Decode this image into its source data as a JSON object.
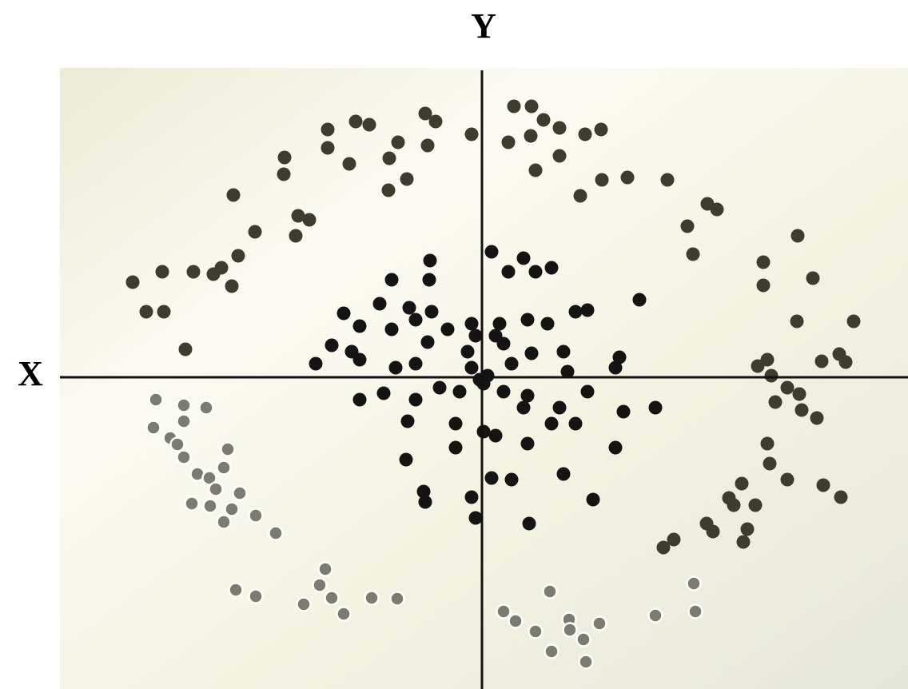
{
  "chart_data": {
    "type": "scatter",
    "xlabel": "X",
    "ylabel": "Y",
    "xlim": [
      -528,
      533
    ],
    "ylim": [
      -390,
      387
    ],
    "series": [
      {
        "color": "#141414",
        "x": [
          -65,
          12,
          52,
          87,
          33,
          67,
          -113,
          -66,
          197,
          -173,
          -128,
          -91,
          -63,
          117,
          132,
          -153,
          -113,
          -83,
          -43,
          -13,
          22,
          57,
          82,
          -188,
          -163,
          -68,
          -18,
          27,
          62,
          102,
          172,
          -208,
          -153,
          -108,
          -83,
          -13,
          37,
          107,
          167,
          -53,
          -28,
          2,
          27,
          57,
          132,
          -153,
          -123,
          -83,
          217,
          177,
          97,
          52,
          -93,
          -33,
          2,
          87,
          117,
          -33,
          17,
          57,
          167,
          -95,
          12,
          37,
          102,
          -73,
          -13,
          139,
          -71,
          -8,
          59,
          -3,
          7,
          -8,
          17
        ],
        "values": [
          146,
          157,
          149,
          137,
          132,
          132,
          122,
          122,
          97,
          80,
          92,
          87,
          82,
          82,
          84,
          64,
          60,
          72,
          60,
          67,
          67,
          72,
          67,
          40,
          32,
          44,
          32,
          42,
          30,
          32,
          25,
          17,
          22,
          12,
          17,
          12,
          17,
          7,
          12,
          -13,
          -18,
          -8,
          -18,
          -23,
          -18,
          -28,
          -20,
          -28,
          -38,
          -43,
          -38,
          -38,
          -55,
          -58,
          -68,
          -58,
          -58,
          -88,
          -73,
          -83,
          -88,
          -103,
          -126,
          -128,
          -121,
          -143,
          -150,
          -153,
          -156,
          -176,
          -183,
          -3,
          2,
          52,
          52
        ]
      },
      {
        "color": "#3d3c2e",
        "x": [
          -71,
          -58,
          -158,
          -141,
          -193,
          -13,
          40,
          62,
          77,
          97,
          129,
          149,
          61,
          33,
          -193,
          -166,
          -105,
          -116,
          -68,
          -247,
          -248,
          -94,
          -117,
          67,
          97,
          -311,
          123,
          150,
          182,
          232,
          282,
          294,
          -230,
          -216,
          -284,
          -233,
          257,
          264,
          395,
          -305,
          -326,
          -336,
          -313,
          -361,
          -400,
          -437,
          352,
          352,
          414,
          -420,
          -398,
          394,
          465,
          -371,
          357,
          447,
          425,
          455,
          345,
          362,
          382,
          397,
          367,
          400,
          419,
          357,
          360,
          382,
          427,
          449,
          325,
          309,
          315,
          342,
          281,
          289,
          332,
          327,
          240,
          227
        ],
        "values": [
          330,
          320,
          320,
          316,
          310,
          304,
          339,
          339,
          322,
          312,
          304,
          310,
          302,
          294,
          287,
          267,
          294,
          274,
          290,
          275,
          254,
          248,
          234,
          259,
          277,
          228,
          227,
          247,
          250,
          247,
          217,
          210,
          202,
          197,
          182,
          177,
          189,
          154,
          177,
          152,
          137,
          129,
          114,
          132,
          132,
          119,
          144,
          115,
          124,
          82,
          82,
          70,
          70,
          35,
          22,
          29,
          20,
          19,
          14,
          2,
          -13,
          -21,
          -31,
          -41,
          -51,
          -83,
          -108,
          -128,
          -135,
          -150,
          -133,
          -151,
          -160,
          -160,
          -183,
          -193,
          -190,
          -206,
          -203,
          -213
        ]
      },
      {
        "color": "#7b7b70",
        "x": [
          -408,
          -373,
          -345,
          -411,
          -373,
          -390,
          -381,
          -318,
          -373,
          -323,
          -356,
          -341,
          -333,
          -303,
          -363,
          -340,
          -313,
          -283,
          -323,
          -258,
          -196,
          -203,
          -308,
          -283,
          -223,
          -188,
          -173,
          -138,
          -106,
          85,
          27,
          42,
          67,
          109,
          110,
          127,
          147,
          87,
          130,
          217,
          265,
          267
        ],
        "values": [
          -28,
          -35,
          -38,
          -63,
          -55,
          -76,
          -84,
          -90,
          -100,
          -113,
          -121,
          -126,
          -140,
          -145,
          -158,
          -161,
          -165,
          -173,
          -181,
          -195,
          -240,
          -260,
          -266,
          -274,
          -284,
          -276,
          -296,
          -276,
          -277,
          -268,
          -293,
          -305,
          -318,
          -303,
          -316,
          -328,
          -308,
          -343,
          -356,
          -298,
          -258,
          -293
        ]
      }
    ]
  }
}
